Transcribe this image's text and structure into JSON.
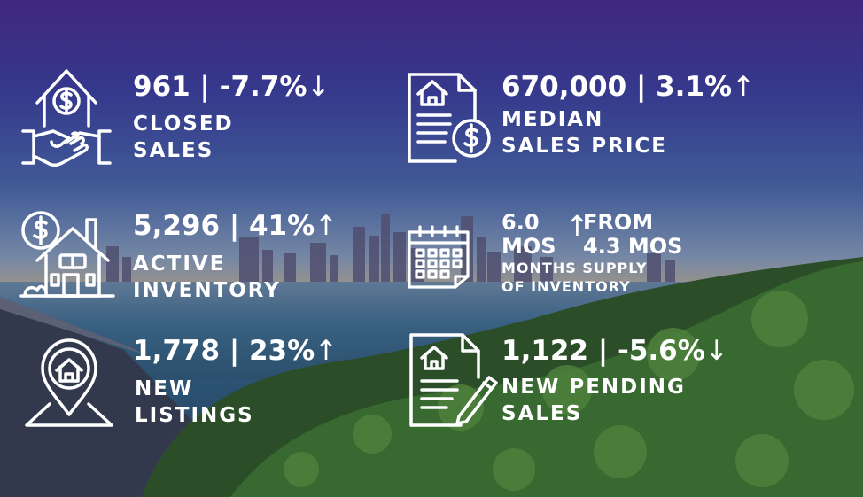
{
  "closed_sales": {
    "value": "961 | -7.7%",
    "arrow": "↓",
    "label_line1": "CLOSED",
    "label_line2": "SALES",
    "icon": "house-handshake-icon"
  },
  "median_price": {
    "value": "670,000 | 3.1%",
    "arrow": "↑",
    "label_line1": "MEDIAN",
    "label_line2": "SALES PRICE",
    "icon": "document-dollar-icon"
  },
  "active_inventory": {
    "value": "5,296 | 41%",
    "arrow": "↑",
    "label_line1": "ACTIVE",
    "label_line2": "INVENTORY",
    "icon": "house-dollar-icon"
  },
  "months_supply": {
    "value_line1": "6.0",
    "value_line2": "MOS",
    "arrow": "↑",
    "from_line1": "FROM",
    "from_line2": "4.3  MOS",
    "label_line1": "MONTHS SUPPLY",
    "label_line2": "OF INVENTORY",
    "icon": "calendar-icon"
  },
  "new_listings": {
    "value": "1,778 | 23%",
    "arrow": "↑",
    "label_line1": "NEW",
    "label_line2": "LISTINGS",
    "icon": "map-pin-house-icon"
  },
  "pending_sales": {
    "value": "1,122 | -5.6%",
    "arrow": "↓",
    "label_line1": "NEW PENDING",
    "label_line2": "SALES",
    "icon": "contract-pen-icon"
  }
}
